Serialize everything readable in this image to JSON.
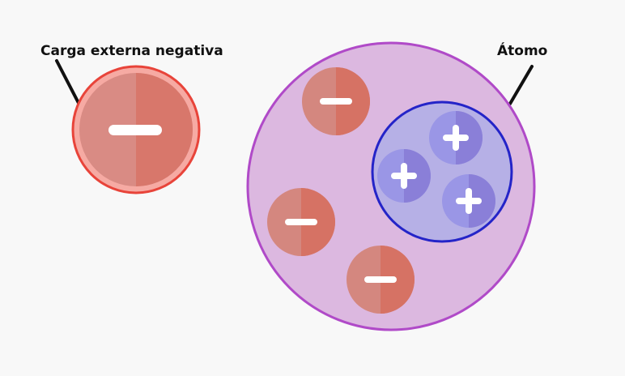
{
  "labels": {
    "external_charge": "Carga externa negativa",
    "atom": "Átomo"
  },
  "symbols": {
    "minus": "−",
    "plus": "+"
  },
  "colors": {
    "background": "#f8f8f8",
    "external_fill_left": "#d98b84",
    "external_fill_right": "#d8776b",
    "external_stroke": "#e8443a",
    "external_ring": "#f6aaa3",
    "atom_fill": "#dcb8e0",
    "atom_stroke": "#b04ac8",
    "nucleus_fill": "#b6b0e6",
    "nucleus_stroke": "#2424c8",
    "electron_left": "#d4877f",
    "electron_right": "#d67264",
    "proton_left": "#9a96e6",
    "proton_right": "#8a7fd8",
    "leader_line": "#111111",
    "symbol": "#ffffff"
  },
  "atom": {
    "electron_count": 4,
    "proton_count": 3
  }
}
